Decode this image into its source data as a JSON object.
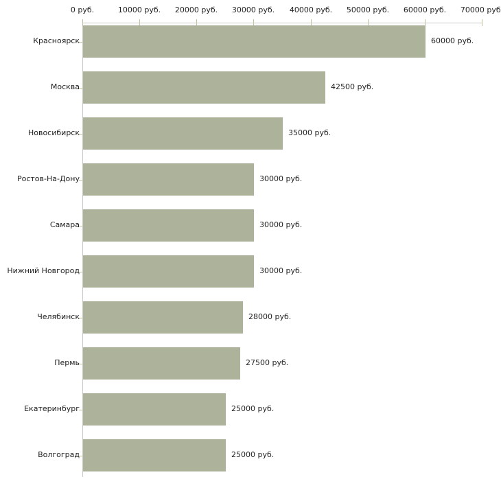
{
  "chart_data": {
    "type": "bar",
    "orientation": "horizontal",
    "title": "",
    "categories": [
      "Красноярск",
      "Москва",
      "Новосибирск",
      "Ростов-На-Дону",
      "Самара",
      "Нижний Новгород",
      "Челябинск",
      "Пермь",
      "Екатеринбург",
      "Волгоград"
    ],
    "values": [
      60000,
      42500,
      35000,
      30000,
      30000,
      30000,
      28000,
      27500,
      25000,
      25000
    ],
    "value_labels": [
      "60000 руб.",
      "42500 руб.",
      "35000 руб.",
      "30000 руб.",
      "30000 руб.",
      "30000 руб.",
      "28000 руб.",
      "27500 руб.",
      "25000 руб.",
      "25000 руб."
    ],
    "x_axis": {
      "position": "top",
      "min": 0,
      "max": 70000,
      "tick_values": [
        0,
        10000,
        20000,
        30000,
        40000,
        50000,
        60000,
        70000
      ],
      "tick_labels": [
        "0 руб.",
        "10000 руб.",
        "20000 руб.",
        "30000 руб.",
        "40000 руб.",
        "50000 руб.",
        "60000 руб.",
        "70000 руб."
      ]
    },
    "colors": {
      "bar": "#adb29b",
      "axis_line": "#c9c9c9",
      "tick": "#c2c29c",
      "text": "#222222",
      "background": "#ffffff"
    },
    "grid": false,
    "legend": false
  }
}
